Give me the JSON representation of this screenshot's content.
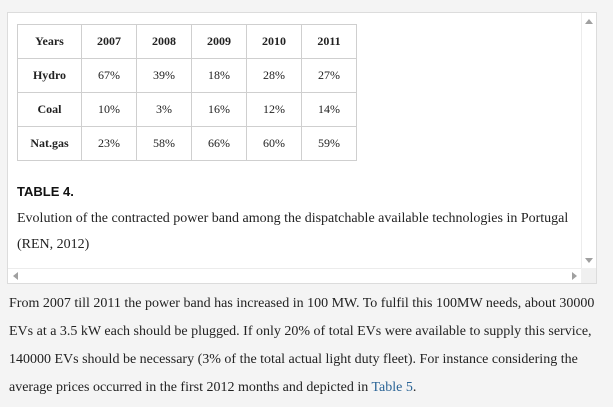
{
  "table": {
    "header": [
      "Years",
      "2007",
      "2008",
      "2009",
      "2010",
      "2011"
    ],
    "rows": [
      {
        "label": "Hydro",
        "values": [
          "67%",
          "39%",
          "18%",
          "28%",
          "27%"
        ]
      },
      {
        "label": "Coal",
        "values": [
          "10%",
          "3%",
          "16%",
          "12%",
          "14%"
        ]
      },
      {
        "label": "Nat.gas",
        "values": [
          "23%",
          "58%",
          "66%",
          "60%",
          "59%"
        ]
      }
    ]
  },
  "table_label": "TABLE 4.",
  "table_caption": "Evolution of the contracted power band among the dispatchable available technologies in Portugal (REN, 2012)",
  "paragraph": {
    "text_before_link": "From 2007 till 2011 the power band has increased in 100 MW. To fulfil this 100MW needs, about 30000 EVs at a 3.5 kW each should be plugged. If only 20% of total EVs were available to supply this service, 140000 EVs should be necessary (3% of the total actual light duty fleet). For instance considering the average prices occurred in the first 2012 months and depicted in ",
    "link_text": "Table 5",
    "text_after_link": "."
  },
  "colors": {
    "link": "#2a6496",
    "border": "#cfcfcf"
  }
}
